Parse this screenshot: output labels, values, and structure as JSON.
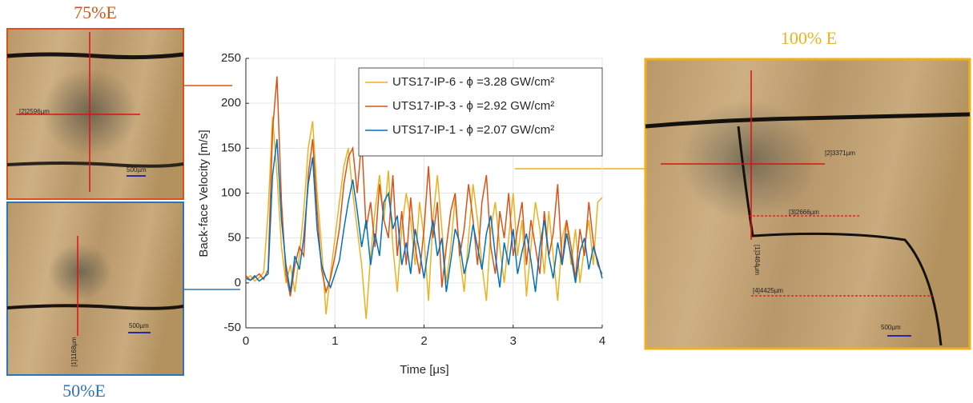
{
  "chart_data": {
    "type": "line",
    "x_label": "Time [μs]",
    "y_label": "Back-face Velocity [m/s]",
    "x": [
      0,
      0.05,
      0.1,
      0.15,
      0.2,
      0.25,
      0.3,
      0.35,
      0.4,
      0.45,
      0.5,
      0.55,
      0.6,
      0.65,
      0.7,
      0.75,
      0.8,
      0.85,
      0.9,
      0.95,
      1,
      1.05,
      1.1,
      1.15,
      1.2,
      1.25,
      1.3,
      1.35,
      1.4,
      1.45,
      1.5,
      1.55,
      1.6,
      1.65,
      1.7,
      1.75,
      1.8,
      1.85,
      1.9,
      1.95,
      2,
      2.05,
      2.1,
      2.15,
      2.2,
      2.25,
      2.3,
      2.35,
      2.4,
      2.45,
      2.5,
      2.55,
      2.6,
      2.65,
      2.7,
      2.75,
      2.8,
      2.85,
      2.9,
      2.95,
      3,
      3.05,
      3.1,
      3.15,
      3.2,
      3.25,
      3.3,
      3.35,
      3.4,
      3.45,
      3.5,
      3.55,
      3.6,
      3.65,
      3.7,
      3.75,
      3.8,
      3.85,
      3.9,
      3.95,
      4
    ],
    "series": [
      {
        "name": "UTS17-IP-6 - ϕ =3.28 GW/cm²",
        "color": "#EDB120",
        "values": [
          4,
          8,
          2,
          6,
          12,
          80,
          185,
          120,
          40,
          0,
          20,
          -10,
          30,
          80,
          150,
          180,
          100,
          40,
          -35,
          10,
          50,
          90,
          130,
          150,
          100,
          60,
          20,
          -40,
          30,
          80,
          120,
          70,
          125,
          40,
          -10,
          60,
          100,
          70,
          20,
          90,
          50,
          -20,
          70,
          120,
          60,
          0,
          40,
          95,
          30,
          -10,
          50,
          110,
          70,
          20,
          -20,
          60,
          90,
          40,
          0,
          50,
          100,
          30,
          70,
          -15,
          40,
          90,
          60,
          10,
          80,
          30,
          -20,
          50,
          70,
          20,
          60,
          0,
          40,
          70,
          20,
          90,
          95
        ]
      },
      {
        "name": "UTS17-IP-3 - ϕ =2.92 GW/cm²",
        "color": "#D95319",
        "values": [
          8,
          3,
          6,
          10,
          4,
          15,
          170,
          230,
          90,
          10,
          -15,
          20,
          40,
          30,
          120,
          160,
          80,
          15,
          -10,
          5,
          30,
          60,
          110,
          140,
          150,
          100,
          160,
          60,
          90,
          40,
          110,
          70,
          50,
          120,
          30,
          80,
          20,
          95,
          40,
          10,
          60,
          130,
          50,
          90,
          -5,
          40,
          80,
          100,
          30,
          60,
          110,
          70,
          20,
          90,
          120,
          40,
          10,
          80,
          50,
          100,
          30,
          60,
          90,
          20,
          70,
          40,
          10,
          80,
          30,
          55,
          110,
          20,
          70,
          40,
          5,
          60,
          30,
          90,
          45,
          20,
          10
        ]
      },
      {
        "name": "UTS17-IP-1 - ϕ =2.07 GW/cm²",
        "color": "#0072BD",
        "values": [
          5,
          3,
          8,
          2,
          6,
          10,
          120,
          160,
          70,
          20,
          -10,
          30,
          15,
          50,
          110,
          140,
          60,
          20,
          5,
          -5,
          10,
          25,
          60,
          90,
          115,
          80,
          40,
          70,
          20,
          55,
          30,
          90,
          100,
          60,
          75,
          20,
          45,
          10,
          60,
          35,
          5,
          40,
          70,
          30,
          50,
          -10,
          25,
          60,
          45,
          10,
          30,
          65,
          40,
          15,
          55,
          75,
          30,
          -5,
          45,
          20,
          60,
          10,
          35,
          55,
          25,
          -10,
          40,
          70,
          30,
          5,
          45,
          20,
          55,
          30,
          0,
          35,
          50,
          15,
          40,
          25,
          5
        ]
      }
    ],
    "xlim": [
      0,
      4
    ],
    "xticks": [
      0,
      1,
      2,
      3,
      4
    ],
    "ylim": [
      -50,
      250
    ],
    "yticks": [
      -50,
      0,
      50,
      100,
      150,
      200,
      250
    ],
    "grid": true,
    "legend": "top-right"
  },
  "images": {
    "top_left": {
      "label": "75%E",
      "annotation": "[2]2596µm",
      "scale": "500µm"
    },
    "bottom_left": {
      "label": "50%E",
      "annotation": "[1]1168µm",
      "scale": "500µm"
    },
    "right": {
      "label": "100% E",
      "annotations": [
        "[2]3371µm",
        "[3]2666µm",
        "[1]3484µm",
        "[4]4425µm"
      ],
      "scale": "500µm"
    }
  }
}
